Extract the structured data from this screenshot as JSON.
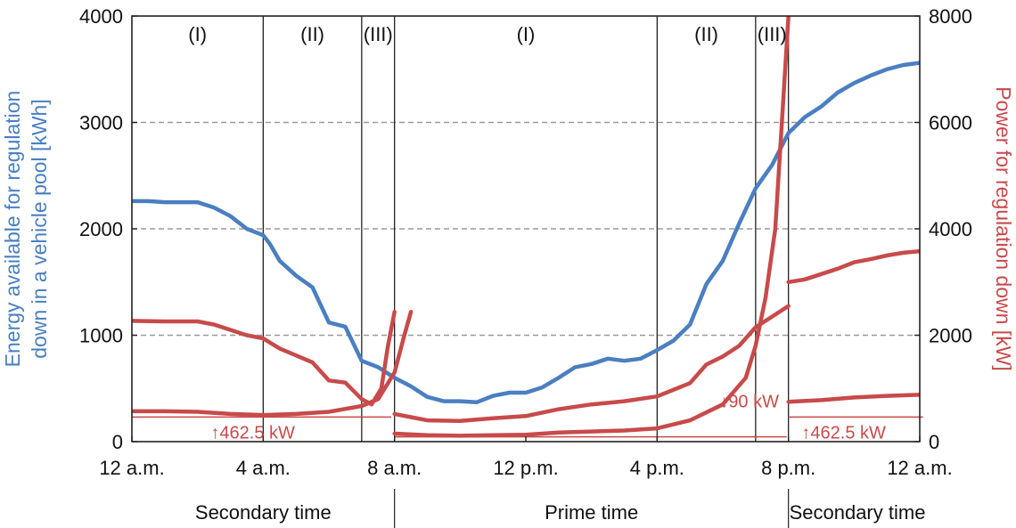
{
  "chart_data": {
    "type": "line",
    "colors": {
      "energy": "#4a7fc1",
      "power": "#c84a4a",
      "grid": "#9a9a9a",
      "frame": "#222222"
    },
    "left_axis": {
      "label_lines": [
        "Energy available for regulation",
        "down in a vehicle pool [kWh]"
      ],
      "ylim": [
        0,
        4000
      ],
      "ticks": [
        0,
        1000,
        2000,
        3000,
        4000
      ]
    },
    "right_axis": {
      "label": "Power for regulation down [kW]",
      "ylim": [
        0,
        8000
      ],
      "ticks": [
        0,
        2000,
        4000,
        6000,
        8000
      ]
    },
    "x_axis": {
      "range_hours": [
        0,
        24
      ],
      "ticks": [
        {
          "hour": 0,
          "label": "12 a.m."
        },
        {
          "hour": 4,
          "label": "4 a.m."
        },
        {
          "hour": 8,
          "label": "8 a.m."
        },
        {
          "hour": 12,
          "label": "12 p.m."
        },
        {
          "hour": 16,
          "label": "4 p.m."
        },
        {
          "hour": 20,
          "label": "8 p.m."
        },
        {
          "hour": 24,
          "label": "12 a.m."
        }
      ]
    },
    "grid": {
      "dashed_horizontal": true,
      "values_left": [
        1000,
        2000,
        3000
      ]
    },
    "phase_lines_hours": [
      4,
      7,
      8,
      16,
      19,
      20
    ],
    "regions": [
      {
        "label": "(I)",
        "hour": 2
      },
      {
        "label": "(II)",
        "hour": 5.5
      },
      {
        "label": "(III)",
        "hour": 7.5
      },
      {
        "label": "(I)",
        "hour": 12
      },
      {
        "label": "(II)",
        "hour": 17.5
      },
      {
        "label": "(III)",
        "hour": 19.5
      }
    ],
    "periods": [
      {
        "label": "Secondary time",
        "hour": 4
      },
      {
        "label": "Prime time",
        "hour": 14
      },
      {
        "label": "Secondary time",
        "hour": 22.1
      }
    ],
    "period_dividers_hours": [
      8,
      20
    ],
    "thresholds": [
      {
        "from": 0,
        "to": 7.9,
        "value_kw": 462.5,
        "label": "↑462.5 kW",
        "label_hour": 2.4,
        "label_value_kw": 190
      },
      {
        "from": 8,
        "to": 19.95,
        "value_kw": 90,
        "label": "↓90 kW",
        "label_hour": 17.9,
        "label_value_kw": 780
      },
      {
        "from": 20,
        "to": 24.1,
        "value_kw": 462.5,
        "label": "↑462.5 kW",
        "label_hour": 20.4,
        "label_value_kw": 190
      }
    ],
    "series": [
      {
        "key": "energy",
        "axis": "left",
        "color": "#4a7fc1",
        "segments": [
          [
            [
              0,
              2260
            ],
            [
              0.5,
              2260
            ],
            [
              1,
              2250
            ],
            [
              1.5,
              2250
            ],
            [
              2,
              2250
            ],
            [
              2.5,
              2200
            ],
            [
              3,
              2120
            ],
            [
              3.5,
              2000
            ],
            [
              4,
              1940
            ],
            [
              4.2,
              1860
            ],
            [
              4.5,
              1700
            ],
            [
              5,
              1560
            ],
            [
              5.5,
              1450
            ],
            [
              6,
              1120
            ],
            [
              6.5,
              1080
            ],
            [
              7,
              760
            ],
            [
              7.5,
              700
            ],
            [
              8,
              600
            ],
            [
              8.5,
              520
            ],
            [
              9,
              420
            ],
            [
              9.5,
              380
            ],
            [
              10,
              380
            ],
            [
              10.5,
              370
            ],
            [
              11,
              430
            ],
            [
              11.5,
              460
            ],
            [
              12,
              460
            ],
            [
              12.5,
              510
            ],
            [
              13,
              600
            ],
            [
              13.5,
              700
            ],
            [
              14,
              730
            ],
            [
              14.5,
              780
            ],
            [
              15,
              760
            ],
            [
              15.5,
              780
            ],
            [
              16,
              860
            ],
            [
              16.5,
              950
            ],
            [
              17,
              1100
            ],
            [
              17.5,
              1480
            ],
            [
              18,
              1700
            ],
            [
              18.5,
              2050
            ],
            [
              19,
              2380
            ],
            [
              19.5,
              2600
            ],
            [
              20,
              2900
            ],
            [
              20.5,
              3050
            ],
            [
              21,
              3150
            ],
            [
              21.5,
              3280
            ],
            [
              22,
              3370
            ],
            [
              22.5,
              3440
            ],
            [
              23,
              3500
            ],
            [
              23.5,
              3540
            ],
            [
              24,
              3560
            ]
          ]
        ]
      },
      {
        "key": "power_high",
        "axis": "right",
        "color": "#c84a4a",
        "segments": [
          [
            [
              0,
              2270
            ],
            [
              1,
              2260
            ],
            [
              2,
              2260
            ],
            [
              2.5,
              2200
            ],
            [
              3,
              2100
            ],
            [
              3.5,
              2000
            ],
            [
              4,
              1940
            ],
            [
              4.5,
              1750
            ],
            [
              5,
              1620
            ],
            [
              5.5,
              1490
            ],
            [
              6,
              1150
            ],
            [
              6.5,
              1110
            ],
            [
              7,
              800
            ],
            [
              7.3,
              700
            ],
            [
              7.6,
              1000
            ],
            [
              7.8,
              1800
            ],
            [
              8,
              2440
            ]
          ],
          [
            [
              8,
              520
            ],
            [
              8.5,
              460
            ],
            [
              9,
              400
            ],
            [
              10,
              390
            ],
            [
              11,
              440
            ],
            [
              12,
              480
            ],
            [
              13,
              610
            ],
            [
              14,
              700
            ],
            [
              15,
              760
            ],
            [
              16,
              850
            ],
            [
              17,
              1100
            ],
            [
              17.5,
              1450
            ],
            [
              18,
              1600
            ],
            [
              18.5,
              1800
            ],
            [
              19,
              2150
            ],
            [
              19.5,
              2350
            ],
            [
              20,
              2550
            ]
          ],
          [
            [
              20,
              3000
            ],
            [
              20.5,
              3050
            ],
            [
              21,
              3150
            ],
            [
              21.5,
              3250
            ],
            [
              22,
              3370
            ],
            [
              22.5,
              3430
            ],
            [
              23,
              3500
            ],
            [
              23.5,
              3550
            ],
            [
              24,
              3580
            ]
          ]
        ]
      },
      {
        "key": "power_low",
        "axis": "right",
        "color": "#c84a4a",
        "segments": [
          [
            [
              0,
              570
            ],
            [
              1,
              570
            ],
            [
              2,
              560
            ],
            [
              3,
              520
            ],
            [
              4,
              500
            ],
            [
              5,
              520
            ],
            [
              6,
              560
            ],
            [
              7,
              670
            ],
            [
              7.5,
              800
            ],
            [
              8,
              1300
            ],
            [
              8.3,
              2000
            ],
            [
              8.5,
              2440
            ]
          ],
          [
            [
              8,
              150
            ],
            [
              9,
              120
            ],
            [
              10,
              110
            ],
            [
              11,
              120
            ],
            [
              12,
              130
            ],
            [
              13,
              170
            ],
            [
              14,
              190
            ],
            [
              15,
              210
            ],
            [
              16,
              250
            ],
            [
              17,
              400
            ],
            [
              18,
              700
            ],
            [
              18.7,
              1200
            ],
            [
              19,
              1800
            ],
            [
              19.3,
              2700
            ],
            [
              19.6,
              4000
            ],
            [
              19.8,
              6000
            ],
            [
              20,
              8000
            ]
          ],
          [
            [
              20,
              750
            ],
            [
              21,
              780
            ],
            [
              22,
              830
            ],
            [
              23,
              860
            ],
            [
              24,
              880
            ]
          ]
        ]
      }
    ]
  }
}
